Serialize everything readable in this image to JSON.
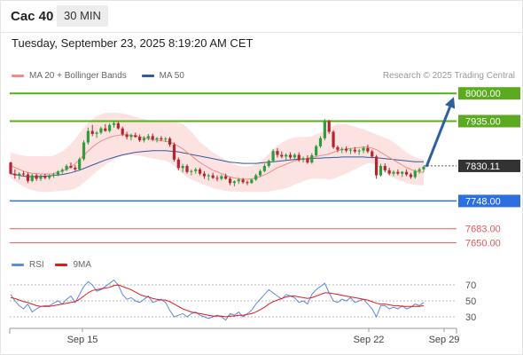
{
  "header": {
    "ticker": "Cac 40",
    "timeframe": "30 MIN"
  },
  "datetime": "Tuesday, September 23, 2025 8:19:20 AM CET",
  "legend": [
    {
      "label": "MA 20 + Bollinger Bands",
      "color": "#f28b82"
    },
    {
      "label": "MA 50",
      "color": "#2e5c9e"
    }
  ],
  "credit": "Research © 2025 Trading Central",
  "rsi_legend": [
    {
      "label": "RSI",
      "color": "#5b8bd9"
    },
    {
      "label": "9MA",
      "color": "#e31a1c"
    }
  ],
  "colors": {
    "bull": "#2e9e3a",
    "bear": "#b3262d",
    "band_fill": "#fde2e2",
    "ma20": "#f28b82",
    "ma50": "#2e5c9e",
    "resistance": "#5aab1f",
    "support": "#2c6fe0",
    "extra_support": "#e05a5a",
    "current": "#333333",
    "arrow": "#2f5f9f",
    "rsi": "#5b8bd9",
    "rsi_ma": "#e31a1c"
  },
  "chart_data": [
    {
      "type": "candlestick",
      "title": "Cac 40",
      "timeframe": "30 MIN",
      "x_labels": [
        "Sep 15",
        "Sep 22",
        "Sep 29"
      ],
      "ylim": [
        7620,
        8015
      ],
      "current_price": "7830.11",
      "levels": [
        {
          "price": "8000.00",
          "kind": "resistance"
        },
        {
          "price": "7935.00",
          "kind": "resistance"
        },
        {
          "price": "7748.00",
          "kind": "support"
        },
        {
          "price": "7683.00",
          "kind": "support"
        },
        {
          "price": "7650.00",
          "kind": "support"
        }
      ],
      "projection": {
        "from": 7828,
        "to": 8000
      },
      "ohlc": [
        [
          7838,
          7840,
          7810,
          7812
        ],
        [
          7812,
          7822,
          7800,
          7808
        ],
        [
          7808,
          7815,
          7798,
          7812
        ],
        [
          7812,
          7818,
          7805,
          7810
        ],
        [
          7810,
          7815,
          7790,
          7795
        ],
        [
          7795,
          7812,
          7792,
          7808
        ],
        [
          7808,
          7812,
          7795,
          7800
        ],
        [
          7800,
          7810,
          7795,
          7806
        ],
        [
          7806,
          7812,
          7799,
          7802
        ],
        [
          7802,
          7810,
          7798,
          7807
        ],
        [
          7807,
          7814,
          7802,
          7810
        ],
        [
          7810,
          7820,
          7806,
          7817
        ],
        [
          7817,
          7825,
          7812,
          7821
        ],
        [
          7821,
          7834,
          7818,
          7830
        ],
        [
          7830,
          7838,
          7824,
          7826
        ],
        [
          7826,
          7832,
          7818,
          7822
        ],
        [
          7822,
          7850,
          7820,
          7846
        ],
        [
          7846,
          7890,
          7842,
          7885
        ],
        [
          7885,
          7920,
          7880,
          7912
        ],
        [
          7912,
          7926,
          7900,
          7905
        ],
        [
          7905,
          7912,
          7896,
          7908
        ],
        [
          7908,
          7922,
          7904,
          7918
        ],
        [
          7918,
          7928,
          7910,
          7912
        ],
        [
          7912,
          7930,
          7908,
          7926
        ],
        [
          7926,
          7936,
          7920,
          7930
        ],
        [
          7930,
          7934,
          7915,
          7918
        ],
        [
          7918,
          7922,
          7900,
          7904
        ],
        [
          7904,
          7910,
          7892,
          7898
        ],
        [
          7898,
          7906,
          7890,
          7902
        ],
        [
          7902,
          7908,
          7896,
          7898
        ],
        [
          7898,
          7904,
          7886,
          7890
        ],
        [
          7890,
          7900,
          7885,
          7895
        ],
        [
          7895,
          7905,
          7890,
          7900
        ],
        [
          7900,
          7906,
          7888,
          7892
        ],
        [
          7892,
          7898,
          7885,
          7895
        ],
        [
          7895,
          7900,
          7888,
          7892
        ],
        [
          7892,
          7898,
          7886,
          7894
        ],
        [
          7894,
          7898,
          7875,
          7880
        ],
        [
          7880,
          7885,
          7840,
          7845
        ],
        [
          7845,
          7850,
          7820,
          7825
        ],
        [
          7825,
          7835,
          7815,
          7830
        ],
        [
          7830,
          7834,
          7812,
          7816
        ],
        [
          7816,
          7822,
          7808,
          7818
        ],
        [
          7818,
          7826,
          7812,
          7822
        ],
        [
          7822,
          7826,
          7808,
          7812
        ],
        [
          7812,
          7818,
          7800,
          7806
        ],
        [
          7806,
          7812,
          7796,
          7808
        ],
        [
          7808,
          7814,
          7800,
          7802
        ],
        [
          7802,
          7808,
          7794,
          7800
        ],
        [
          7800,
          7810,
          7796,
          7806
        ],
        [
          7806,
          7812,
          7798,
          7800
        ],
        [
          7800,
          7804,
          7785,
          7790
        ],
        [
          7790,
          7796,
          7782,
          7794
        ],
        [
          7794,
          7802,
          7788,
          7798
        ],
        [
          7798,
          7802,
          7788,
          7792
        ],
        [
          7792,
          7796,
          7785,
          7790
        ],
        [
          7790,
          7800,
          7788,
          7798
        ],
        [
          7798,
          7812,
          7795,
          7808
        ],
        [
          7808,
          7822,
          7804,
          7818
        ],
        [
          7818,
          7835,
          7815,
          7830
        ],
        [
          7830,
          7845,
          7826,
          7842
        ],
        [
          7842,
          7870,
          7838,
          7865
        ],
        [
          7865,
          7872,
          7850,
          7856
        ],
        [
          7856,
          7864,
          7848,
          7852
        ],
        [
          7852,
          7860,
          7844,
          7856
        ],
        [
          7856,
          7862,
          7846,
          7850
        ],
        [
          7850,
          7860,
          7845,
          7856
        ],
        [
          7856,
          7862,
          7840,
          7844
        ],
        [
          7844,
          7852,
          7838,
          7848
        ],
        [
          7848,
          7855,
          7835,
          7838
        ],
        [
          7838,
          7860,
          7835,
          7855
        ],
        [
          7855,
          7880,
          7852,
          7876
        ],
        [
          7876,
          7900,
          7872,
          7895
        ],
        [
          7895,
          7940,
          7890,
          7935
        ],
        [
          7935,
          7938,
          7905,
          7910
        ],
        [
          7910,
          7914,
          7870,
          7874
        ],
        [
          7874,
          7878,
          7862,
          7868
        ],
        [
          7868,
          7874,
          7860,
          7870
        ],
        [
          7870,
          7876,
          7862,
          7866
        ],
        [
          7866,
          7872,
          7858,
          7868
        ],
        [
          7868,
          7874,
          7860,
          7864
        ],
        [
          7864,
          7870,
          7856,
          7866
        ],
        [
          7866,
          7876,
          7860,
          7872
        ],
        [
          7872,
          7880,
          7860,
          7864
        ],
        [
          7864,
          7868,
          7848,
          7852
        ],
        [
          7852,
          7856,
          7800,
          7808
        ],
        [
          7808,
          7835,
          7805,
          7830
        ],
        [
          7830,
          7836,
          7815,
          7820
        ],
        [
          7820,
          7826,
          7808,
          7812
        ],
        [
          7812,
          7820,
          7806,
          7816
        ],
        [
          7816,
          7822,
          7808,
          7812
        ],
        [
          7812,
          7818,
          7804,
          7816
        ],
        [
          7816,
          7822,
          7806,
          7810
        ],
        [
          7810,
          7814,
          7800,
          7804
        ],
        [
          7804,
          7822,
          7800,
          7818
        ],
        [
          7818,
          7826,
          7812,
          7822
        ],
        [
          7822,
          7830,
          7816,
          7828
        ]
      ],
      "ma20": [
        7832,
        7826,
        7822,
        7818,
        7815,
        7813,
        7812,
        7811,
        7811,
        7811,
        7812,
        7815,
        7818,
        7822,
        7828,
        7835,
        7845,
        7855,
        7865,
        7874,
        7882,
        7888,
        7893,
        7897,
        7900,
        7902,
        7903,
        7903,
        7902,
        7900,
        7898,
        7896,
        7894,
        7892,
        7890,
        7889,
        7888,
        7886,
        7882,
        7876,
        7870,
        7862,
        7854,
        7846,
        7838,
        7832,
        7826,
        7820,
        7816,
        7812,
        7808,
        7804,
        7802,
        7800,
        7799,
        7799,
        7800,
        7802,
        7805,
        7809,
        7814,
        7820,
        7826,
        7830,
        7834,
        7838,
        7842,
        7844,
        7846,
        7848,
        7850,
        7852,
        7854,
        7856,
        7858,
        7862,
        7866,
        7868,
        7870,
        7871,
        7872,
        7873,
        7874,
        7874,
        7872,
        7868,
        7862,
        7856,
        7850,
        7844,
        7838,
        7832,
        7826,
        7822,
        7818,
        7816,
        7815
      ],
      "ma50": [
        7812,
        7810,
        7808,
        7806,
        7805,
        7805,
        7805,
        7806,
        7806,
        7807,
        7808,
        7809,
        7810,
        7812,
        7814,
        7817,
        7820,
        7824,
        7828,
        7832,
        7836,
        7840,
        7844,
        7847,
        7850,
        7853,
        7856,
        7858,
        7860,
        7862,
        7863,
        7864,
        7865,
        7866,
        7866,
        7866,
        7866,
        7865,
        7864,
        7863,
        7861,
        7859,
        7857,
        7855,
        7853,
        7851,
        7849,
        7847,
        7845,
        7843,
        7841,
        7839,
        7838,
        7837,
        7836,
        7836,
        7836,
        7836,
        7837,
        7838,
        7839,
        7840,
        7841,
        7842,
        7843,
        7844,
        7845,
        7846,
        7846,
        7847,
        7847,
        7848,
        7848,
        7849,
        7849,
        7850,
        7850,
        7851,
        7851,
        7851,
        7851,
        7851,
        7851,
        7850,
        7850,
        7849,
        7848,
        7847,
        7846,
        7845,
        7844,
        7843,
        7842,
        7841,
        7840,
        7840,
        7840
      ],
      "band_width": [
        30,
        32,
        34,
        36,
        38,
        40,
        41,
        42,
        42,
        42,
        42,
        44,
        46,
        50,
        54,
        58,
        62,
        64,
        66,
        66,
        65,
        63,
        61,
        58,
        55,
        52,
        50,
        48,
        46,
        45,
        44,
        44,
        44,
        44,
        44,
        45,
        46,
        48,
        52,
        56,
        58,
        58,
        56,
        52,
        48,
        46,
        44,
        42,
        40,
        38,
        36,
        34,
        32,
        31,
        30,
        30,
        31,
        33,
        36,
        40,
        44,
        48,
        52,
        54,
        56,
        56,
        55,
        54,
        52,
        50,
        50,
        52,
        54,
        56,
        60,
        62,
        62,
        60,
        58,
        54,
        50,
        46,
        42,
        38,
        36,
        36,
        38,
        40,
        42,
        42,
        40,
        38,
        36,
        34,
        32,
        31,
        30
      ]
    },
    {
      "type": "line",
      "title": "RSI",
      "yticks": [
        70,
        50,
        30
      ],
      "ylim": [
        20,
        80
      ],
      "series": [
        {
          "name": "RSI",
          "values": [
            58,
            50,
            44,
            40,
            46,
            36,
            40,
            43,
            44,
            44,
            47,
            50,
            46,
            52,
            56,
            48,
            58,
            68,
            74,
            70,
            62,
            64,
            68,
            72,
            76,
            70,
            58,
            52,
            54,
            50,
            48,
            52,
            56,
            48,
            50,
            52,
            48,
            38,
            30,
            32,
            34,
            30,
            34,
            36,
            32,
            30,
            28,
            30,
            32,
            30,
            26,
            34,
            32,
            36,
            30,
            34,
            38,
            46,
            52,
            58,
            64,
            60,
            56,
            52,
            58,
            56,
            54,
            48,
            50,
            46,
            58,
            64,
            68,
            72,
            60,
            50,
            48,
            52,
            50,
            54,
            48,
            50,
            52,
            46,
            40,
            30,
            44,
            44,
            40,
            42,
            40,
            44,
            40,
            42,
            46,
            44,
            48
          ]
        },
        {
          "name": "9MA",
          "values": [
            54,
            53,
            51,
            49,
            48,
            46,
            44,
            43,
            43,
            43,
            44,
            45,
            46,
            47,
            48,
            49,
            52,
            56,
            60,
            63,
            64,
            65,
            66,
            67,
            69,
            70,
            68,
            66,
            64,
            61,
            58,
            56,
            55,
            53,
            52,
            51,
            51,
            49,
            46,
            43,
            40,
            38,
            36,
            35,
            34,
            33,
            32,
            31,
            31,
            31,
            30,
            31,
            31,
            32,
            32,
            33,
            34,
            36,
            39,
            42,
            46,
            49,
            51,
            53,
            55,
            56,
            56,
            55,
            54,
            53,
            54,
            56,
            58,
            60,
            60,
            59,
            58,
            57,
            56,
            55,
            54,
            53,
            52,
            51,
            49,
            47,
            46,
            46,
            45,
            44,
            44,
            43,
            43,
            43,
            43,
            43,
            44
          ]
        }
      ]
    }
  ]
}
